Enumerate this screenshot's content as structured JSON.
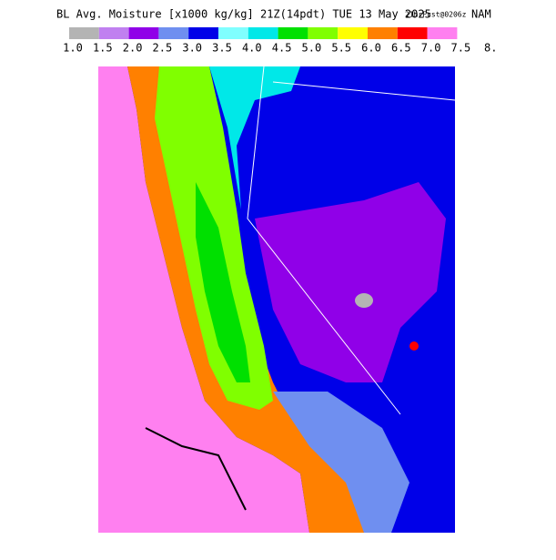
{
  "header": {
    "title": "BL Avg. Moisture [x1000 kg/kg] 21Z(14pdt) TUE 13 May 2025",
    "forecast": "21hrFcst@0206z",
    "model": "NAM"
  },
  "legend": {
    "labels": [
      "1.0",
      "1.5",
      "2.0",
      "2.5",
      "3.0",
      "3.5",
      "4.0",
      "4.5",
      "5.0",
      "5.5",
      "6.0",
      "6.5",
      "7.0",
      "7.5",
      "8."
    ],
    "colors": [
      "#b4b4b4",
      "#c080f0",
      "#9000e8",
      "#6f8ff0",
      "#0000e8",
      "#80ffff",
      "#00e8e8",
      "#00e000",
      "#80ff00",
      "#ffff00",
      "#ff8000",
      "#ff0000",
      "#ff80f0"
    ]
  }
}
